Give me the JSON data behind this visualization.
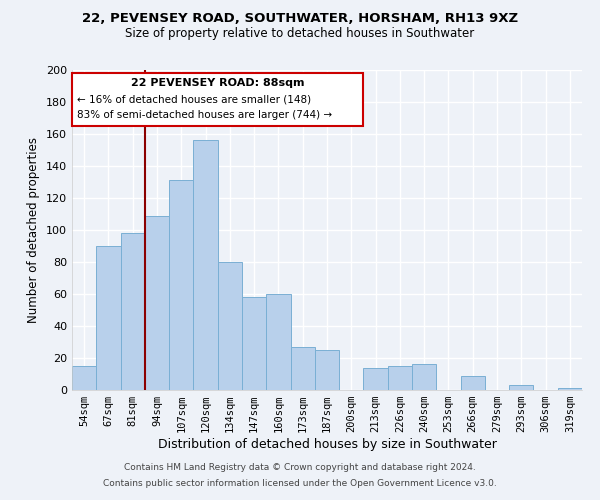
{
  "title": "22, PEVENSEY ROAD, SOUTHWATER, HORSHAM, RH13 9XZ",
  "subtitle": "Size of property relative to detached houses in Southwater",
  "xlabel": "Distribution of detached houses by size in Southwater",
  "ylabel": "Number of detached properties",
  "bar_color": "#b8d0eb",
  "bar_edgecolor": "#7aafd4",
  "categories": [
    "54sqm",
    "67sqm",
    "81sqm",
    "94sqm",
    "107sqm",
    "120sqm",
    "134sqm",
    "147sqm",
    "160sqm",
    "173sqm",
    "187sqm",
    "200sqm",
    "213sqm",
    "226sqm",
    "240sqm",
    "253sqm",
    "266sqm",
    "279sqm",
    "293sqm",
    "306sqm",
    "319sqm"
  ],
  "values": [
    15,
    90,
    98,
    109,
    131,
    156,
    80,
    58,
    60,
    27,
    25,
    0,
    14,
    15,
    16,
    0,
    9,
    0,
    3,
    0,
    1
  ],
  "ylim": [
    0,
    200
  ],
  "yticks": [
    0,
    20,
    40,
    60,
    80,
    100,
    120,
    140,
    160,
    180,
    200
  ],
  "property_label": "22 PEVENSEY ROAD: 88sqm",
  "arrow_left_text": "← 16% of detached houses are smaller (148)",
  "arrow_right_text": "83% of semi-detached houses are larger (744) →",
  "vline_pos": 2.5,
  "footer1": "Contains HM Land Registry data © Crown copyright and database right 2024.",
  "footer2": "Contains public sector information licensed under the Open Government Licence v3.0.",
  "background_color": "#eef2f8",
  "grid_color": "#ffffff"
}
